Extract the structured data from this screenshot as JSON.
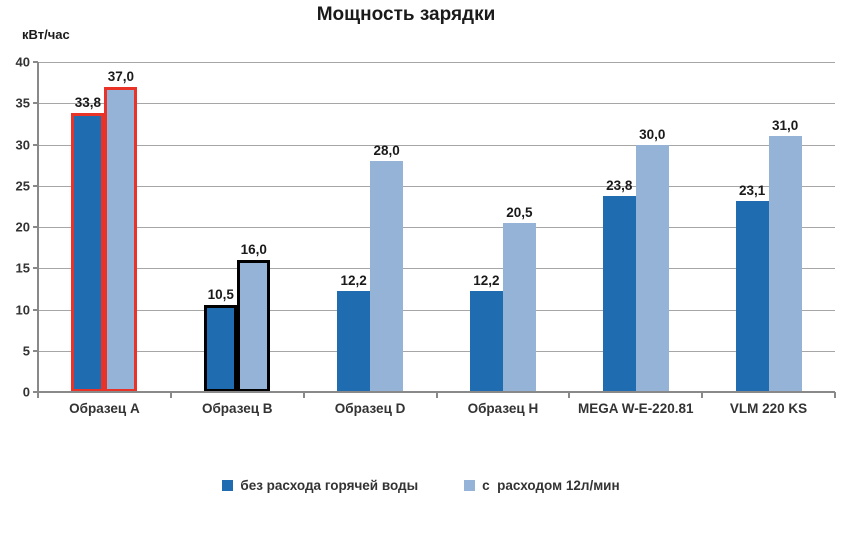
{
  "title": "Мощность зарядки",
  "y_axis_unit": "кВт/час",
  "chart_data": {
    "type": "bar",
    "title": "Мощность зарядки",
    "ylabel": "кВт/час",
    "xlabel": "",
    "ylim": [
      0,
      40
    ],
    "yticks": [
      0,
      5,
      10,
      15,
      20,
      25,
      30,
      35,
      40
    ],
    "grid": true,
    "legend_position": "bottom",
    "categories": [
      "Образец A",
      "Образец B",
      "Образец D",
      "Образец H",
      "MEGA W-E-220.81",
      "VLM 220 KS"
    ],
    "series": [
      {
        "name": "без расхода горячей воды",
        "color": "#1f6cb0",
        "values": [
          33.8,
          10.5,
          12.2,
          12.2,
          23.8,
          23.1
        ],
        "labels": [
          "33,8",
          "10,5",
          "12,2",
          "12,2",
          "23,8",
          "23,1"
        ]
      },
      {
        "name": "с  расходом 12л/мин",
        "color": "#95b3d7",
        "values": [
          37.0,
          16.0,
          28.0,
          20.5,
          30.0,
          31.0
        ],
        "labels": [
          "37,0",
          "16,0",
          "28,0",
          "20,5",
          "30,0",
          "31,0"
        ]
      }
    ],
    "category_outline_colors": [
      "#ea3328",
      "#000000",
      null,
      null,
      null,
      null
    ]
  },
  "colors": {
    "grid": "#a6a6a6",
    "axis": "#898989",
    "text": "#1a1a1a"
  }
}
